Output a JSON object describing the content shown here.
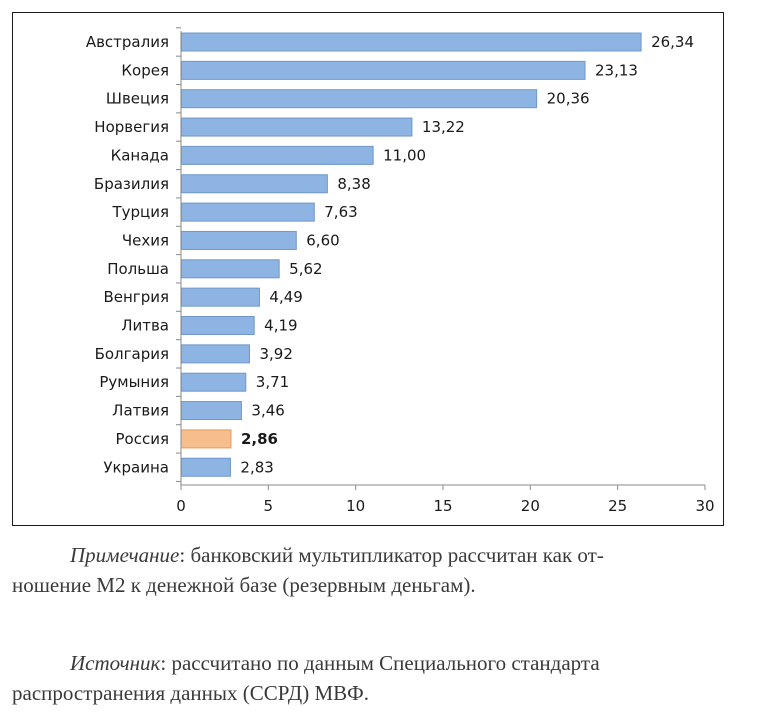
{
  "chart_data": {
    "type": "bar",
    "orientation": "horizontal",
    "title": "",
    "xlabel": "",
    "ylabel": "",
    "xlim": [
      0,
      30
    ],
    "ticks": [
      0,
      5,
      10,
      15,
      20,
      25,
      30
    ],
    "grid": false,
    "categories": [
      "Австралия",
      "Корея",
      "Швеция",
      "Норвегия",
      "Канада",
      "Бразилия",
      "Турция",
      "Чехия",
      "Польша",
      "Венгрия",
      "Литва",
      "Болгария",
      "Румыния",
      "Латвия",
      "Россия",
      "Украина"
    ],
    "values": [
      26.34,
      23.13,
      20.36,
      13.22,
      11.0,
      8.38,
      7.63,
      6.6,
      5.62,
      4.49,
      4.19,
      3.92,
      3.71,
      3.46,
      2.86,
      2.83
    ],
    "value_labels": [
      "26,34",
      "23,13",
      "20,36",
      "13,22",
      "11,00",
      "8,38",
      "7,63",
      "6,60",
      "5,62",
      "4,49",
      "4,19",
      "3,92",
      "3,71",
      "3,46",
      "2,86",
      "2,83"
    ],
    "highlight_category": "Россия",
    "bar_color": "#8eb4e3",
    "bar_border_color": "#6f97c8",
    "highlight_color": "#f7be8d",
    "highlight_border_color": "#e39a5b"
  },
  "notes": {
    "note_lead": "Примечание",
    "note_line1": ": банковский мультипликатор рассчитан как от-",
    "note_line2": "ношение М2 к денежной базе (резервным деньгам).",
    "source_lead": "Источник",
    "source_line1": ": рассчитано по данным Специального стандарта",
    "source_line2": "распространения данных (ССРД) МВФ."
  }
}
